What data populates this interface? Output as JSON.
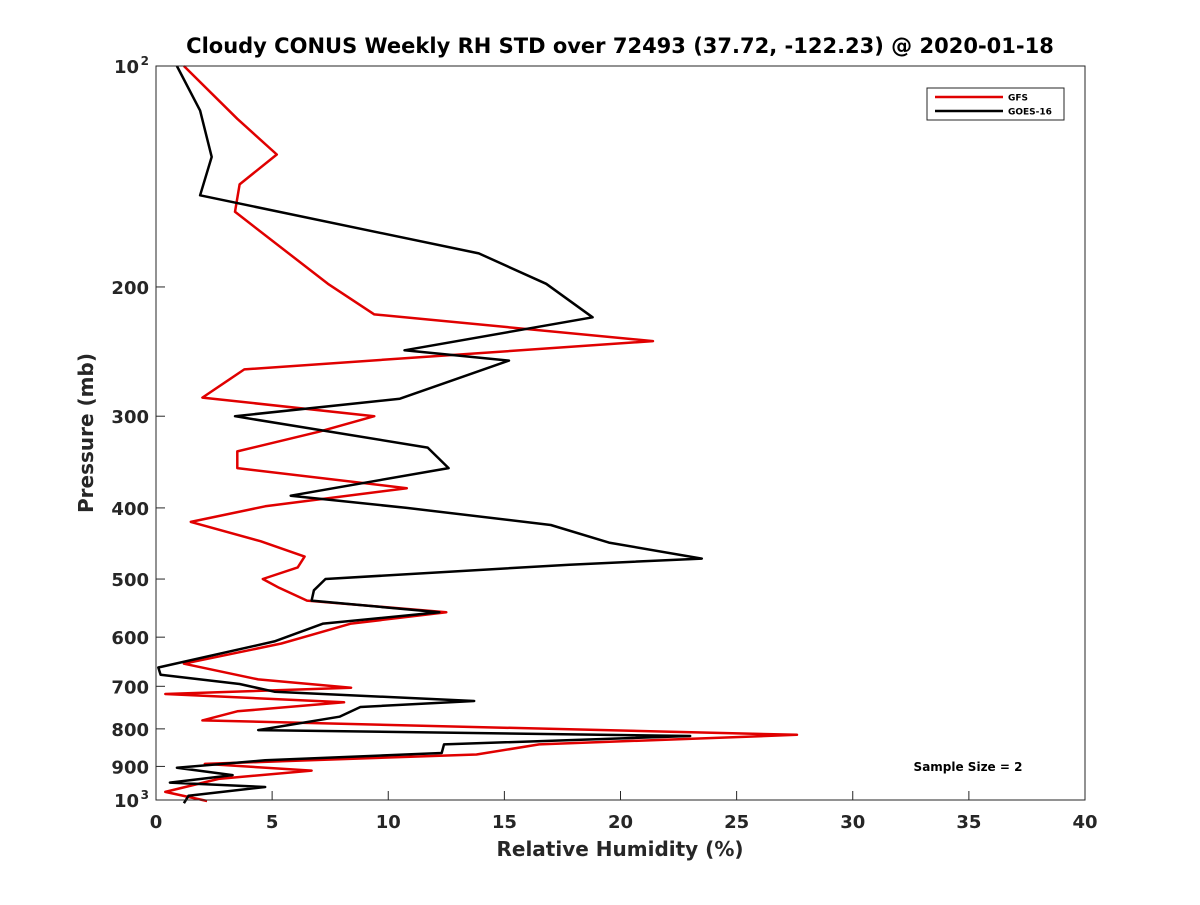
{
  "chart_data": {
    "type": "line",
    "title": "Cloudy CONUS Weekly RH STD over 72493 (37.72, -122.23) @ 2020-01-18",
    "xlabel": "Relative Humidity (%)",
    "ylabel": "Pressure (mb)",
    "xlim": [
      0,
      40
    ],
    "ylim": [
      100,
      1000
    ],
    "y_scale": "log",
    "y_reversed": true,
    "x_ticks": [
      0,
      5,
      10,
      15,
      20,
      25,
      30,
      35,
      40
    ],
    "y_ticks": [
      {
        "value": 100,
        "label": "10",
        "sup": "2"
      },
      {
        "value": 200,
        "label": "200",
        "sup": ""
      },
      {
        "value": 300,
        "label": "300",
        "sup": ""
      },
      {
        "value": 400,
        "label": "400",
        "sup": ""
      },
      {
        "value": 500,
        "label": "500",
        "sup": ""
      },
      {
        "value": 600,
        "label": "600",
        "sup": ""
      },
      {
        "value": 700,
        "label": "700",
        "sup": ""
      },
      {
        "value": 800,
        "label": "800",
        "sup": ""
      },
      {
        "value": 900,
        "label": "900",
        "sup": ""
      },
      {
        "value": 1000,
        "label": "10",
        "sup": "3"
      }
    ],
    "grid": false,
    "legend_position": "top-right",
    "annotation": "Sample Size = 2",
    "series": [
      {
        "name": "GFS",
        "color": "#e00000",
        "x": [
          1.2,
          3.5,
          5.2,
          3.6,
          3.4,
          7.4,
          9.4,
          21.4,
          3.8,
          2.0,
          9.4,
          7.0,
          3.5,
          3.5,
          10.8,
          4.7,
          1.5,
          4.5,
          6.4,
          6.1,
          4.6,
          5.3,
          6.5,
          12.5,
          8.4,
          5.4,
          1.2,
          4.4,
          8.4,
          0.4,
          8.1,
          3.5,
          2.0,
          27.6,
          16.5,
          13.8,
          2.1,
          6.7,
          2.7,
          0.4,
          2.2
        ],
        "y": [
          100,
          118,
          132,
          145,
          158,
          198,
          218,
          237,
          259,
          283,
          300,
          315,
          335,
          353,
          376,
          398,
          418,
          444,
          466,
          482,
          500,
          514,
          535,
          555,
          575,
          612,
          652,
          685,
          703,
          717,
          736,
          757,
          779,
          815,
          840,
          867,
          893,
          912,
          936,
          975,
          1003
        ]
      },
      {
        "name": "GOES-16",
        "color": "#000000",
        "x": [
          0.9,
          1.9,
          2.4,
          1.9,
          13.9,
          16.8,
          18.8,
          10.7,
          15.2,
          10.5,
          3.4,
          11.7,
          12.6,
          5.8,
          10.8,
          17.0,
          19.5,
          23.5,
          17.8,
          7.3,
          6.8,
          6.7,
          12.2,
          7.2,
          5.1,
          0.1,
          0.2,
          3.6,
          5.1,
          13.7,
          8.8,
          7.9,
          4.4,
          23.0,
          12.4,
          12.3,
          4.7,
          0.9,
          3.3,
          0.6,
          4.7,
          1.4,
          1.2
        ],
        "y": [
          100,
          115,
          133,
          150,
          180,
          198,
          220,
          244,
          252,
          284,
          300,
          331,
          353,
          385,
          400,
          422,
          446,
          469,
          478,
          500,
          518,
          535,
          555,
          575,
          608,
          660,
          675,
          695,
          712,
          733,
          747,
          770,
          803,
          818,
          840,
          863,
          883,
          904,
          925,
          947,
          960,
          987,
          1010
        ]
      }
    ]
  }
}
